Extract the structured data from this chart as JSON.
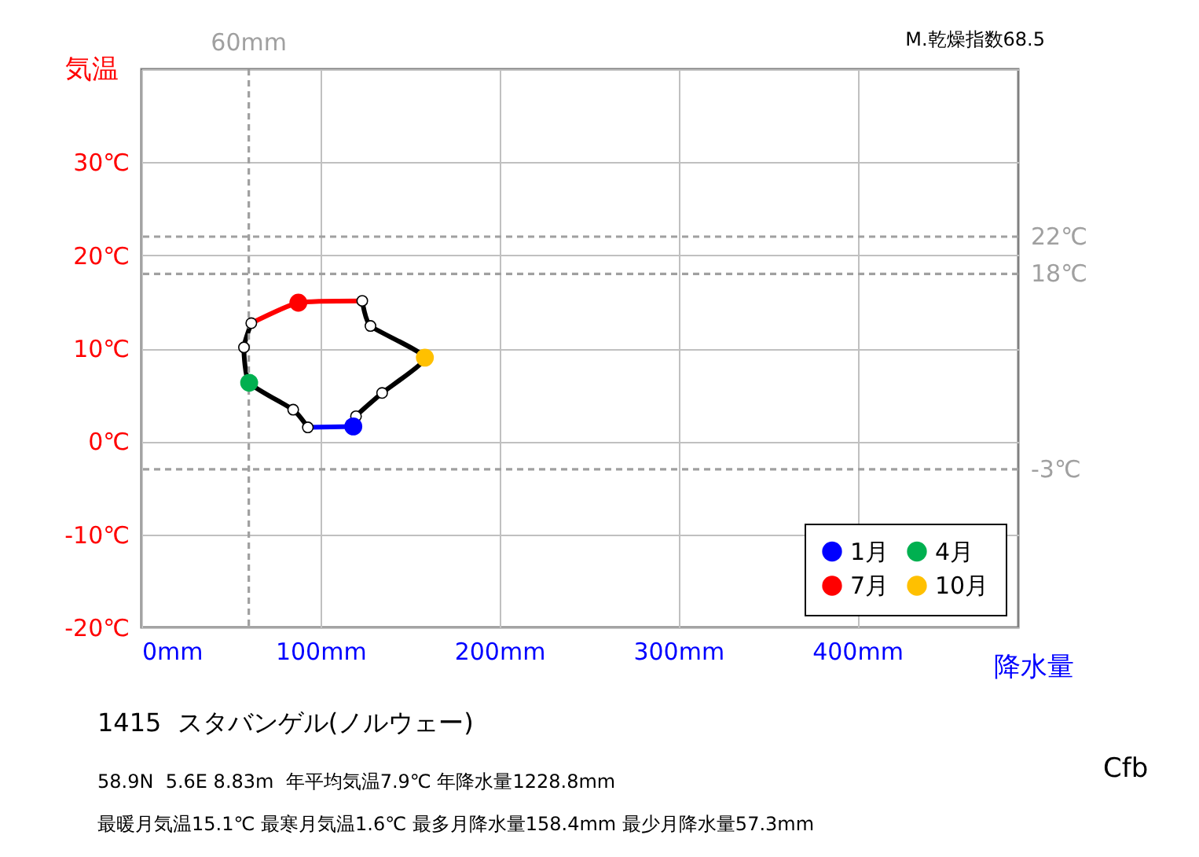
{
  "chart_data": {
    "type": "line",
    "title": "1415  スタバンゲル(ノルウェー)",
    "xlabel": "降水量",
    "ylabel": "気温",
    "annotations": [
      "M.乾燥指数68.5",
      "58.9N  5.6E 8.83m  年平均気温7.9℃ 年降水量1228.8mm",
      "最暖月気温15.1℃ 最寒月気温1.6℃ 最多月降水量158.4mm 最少月降水量57.3mm",
      "Cfb"
    ],
    "xlim": [
      0,
      490
    ],
    "xticks": [
      {
        "value": 0,
        "label": "0mm"
      },
      {
        "value": 100,
        "label": "100mm"
      },
      {
        "value": 200,
        "label": "200mm"
      },
      {
        "value": 300,
        "label": "300mm"
      },
      {
        "value": 400,
        "label": "400mm"
      }
    ],
    "ylim": [
      -20,
      40
    ],
    "yticks": [
      {
        "value": -20,
        "label": "-20℃"
      },
      {
        "value": -10,
        "label": "-10℃"
      },
      {
        "value": 0,
        "label": "0℃"
      },
      {
        "value": 10,
        "label": "10℃"
      },
      {
        "value": 20,
        "label": "20℃"
      },
      {
        "value": 30,
        "label": "30℃"
      },
      {
        "value": 40,
        "label": null
      }
    ],
    "grid": true,
    "legend": "bottom right",
    "line_style": "solid",
    "series": [
      {
        "color": "#000000",
        "marker": "none",
        "x": [
          93,
          84.8,
          60.2,
          57.3,
          61.4
        ],
        "values": [
          1.5,
          3.4,
          6.3,
          10.1,
          12.7
        ]
      },
      {
        "color": "#000000",
        "marker": "none",
        "x": [
          123.4,
          128,
          158.4,
          134.5,
          119.9,
          118.4
        ],
        "values": [
          15.1,
          12.4,
          9.0,
          5.2,
          2.7,
          1.6
        ]
      },
      {
        "color": "#0000ff",
        "marker": "none",
        "x": [
          118.4,
          93
        ],
        "values": [
          1.6,
          1.5
        ]
      },
      {
        "color": "#ff0000",
        "marker": "none",
        "x": [
          61.4,
          87.7,
          123.4
        ],
        "values": [
          12.7,
          14.9,
          15.1
        ]
      },
      {
        "type": "scatter",
        "color": "#ffffff",
        "marker": "circle",
        "x": [
          93,
          84.8,
          57.3,
          61.4,
          123.4,
          128,
          134.5,
          119.9
        ],
        "values": [
          1.5,
          3.4,
          10.1,
          12.7,
          15.1,
          12.4,
          5.2,
          2.7
        ]
      },
      {
        "type": "scatter",
        "name": "1月",
        "color": "#0000ff",
        "marker": "circle",
        "x": [
          118.4
        ],
        "values": [
          1.6
        ]
      },
      {
        "type": "scatter",
        "name": "4月",
        "color": "#00b050",
        "marker": "circle",
        "x": [
          60.2
        ],
        "values": [
          6.3
        ]
      },
      {
        "type": "scatter",
        "name": "7月",
        "color": "#ff0000",
        "marker": "circle",
        "x": [
          87.7
        ],
        "values": [
          14.9
        ]
      },
      {
        "type": "scatter",
        "name": "10月",
        "color": "#ffc000",
        "marker": "circle",
        "x": [
          158.4
        ],
        "values": [
          9.0
        ]
      }
    ],
    "ref_lines": [
      {
        "axis": "y",
        "value": 22,
        "label": "22℃",
        "color": "#a0a0a0",
        "line_style": "dashed"
      },
      {
        "axis": "y",
        "value": 18,
        "label": "18℃",
        "color": "#a0a0a0",
        "line_style": "dashed"
      },
      {
        "axis": "y",
        "value": -3,
        "label": "-3℃",
        "color": "#a0a0a0",
        "line_style": "dashed"
      },
      {
        "axis": "x",
        "value": 60,
        "label": "60mm",
        "color": "#a0a0a0",
        "line_style": "dashed"
      }
    ]
  }
}
